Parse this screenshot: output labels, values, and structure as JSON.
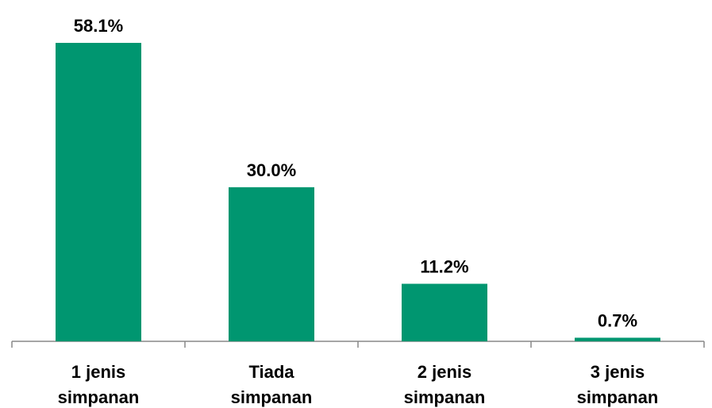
{
  "chart_data": {
    "type": "bar",
    "categories": [
      "1 jenis simpanan",
      "Tiada simpanan",
      "2 jenis simpanan",
      "3 jenis simpanan"
    ],
    "values": [
      58.1,
      30.0,
      11.2,
      0.7
    ],
    "value_labels": [
      "58.1%",
      "30.0%",
      "11.2%",
      "0.7%"
    ],
    "color": "#009670"
  }
}
